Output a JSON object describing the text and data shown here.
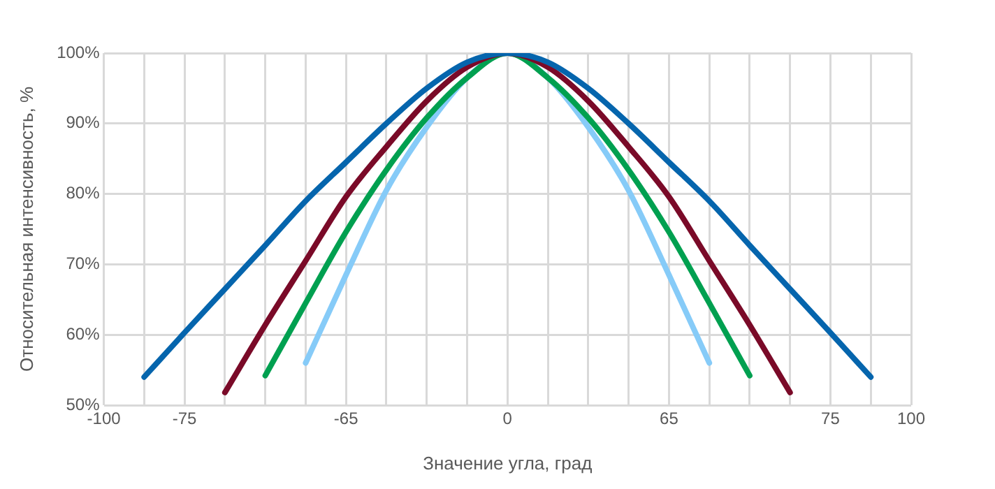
{
  "chart_data": {
    "type": "line",
    "xlabel": "Значение угла, град",
    "ylabel": "Относительная интенсивность, %",
    "categories": [
      "-100",
      null,
      "-75",
      null,
      null,
      null,
      "-65",
      null,
      null,
      null,
      "0",
      null,
      null,
      null,
      "65",
      null,
      null,
      null,
      "75",
      null,
      "100"
    ],
    "ylim": [
      50,
      100
    ],
    "yticks": [
      {
        "value": 50,
        "label": "50%"
      },
      {
        "value": 60,
        "label": "60%"
      },
      {
        "value": 70,
        "label": "70%"
      },
      {
        "value": 80,
        "label": "80%"
      },
      {
        "value": 90,
        "label": "90%"
      },
      {
        "value": 100,
        "label": "100%"
      }
    ],
    "grid": true,
    "marker": "none",
    "line_style": "solid",
    "series": [
      {
        "color": "#0565ad",
        "values": [
          null,
          54,
          60.3,
          66.5,
          72.7,
          79,
          84.5,
          90,
          95,
          98.7,
          100,
          98.7,
          95,
          90,
          84.5,
          79,
          72.7,
          66.5,
          60.3,
          54,
          null
        ]
      },
      {
        "color": "#7a0a28",
        "values": [
          null,
          null,
          null,
          51.8,
          61.4,
          70.5,
          79.6,
          86.7,
          93.2,
          98,
          100,
          98,
          93.2,
          86.7,
          79.6,
          70.5,
          61.4,
          51.8,
          null,
          null,
          null
        ]
      },
      {
        "color": "#00a050",
        "values": [
          null,
          null,
          null,
          null,
          54.2,
          64.5,
          74.6,
          83.4,
          90.8,
          96.5,
          100,
          96.5,
          90.8,
          83.4,
          74.6,
          64.5,
          54.2,
          null,
          null,
          null,
          null
        ]
      },
      {
        "color": "#86cbf8",
        "values": [
          null,
          null,
          null,
          null,
          null,
          56,
          68.5,
          80.5,
          89.5,
          96.5,
          100,
          96.5,
          89.5,
          80.5,
          68.5,
          56,
          null,
          null,
          null,
          null,
          null
        ]
      }
    ]
  }
}
